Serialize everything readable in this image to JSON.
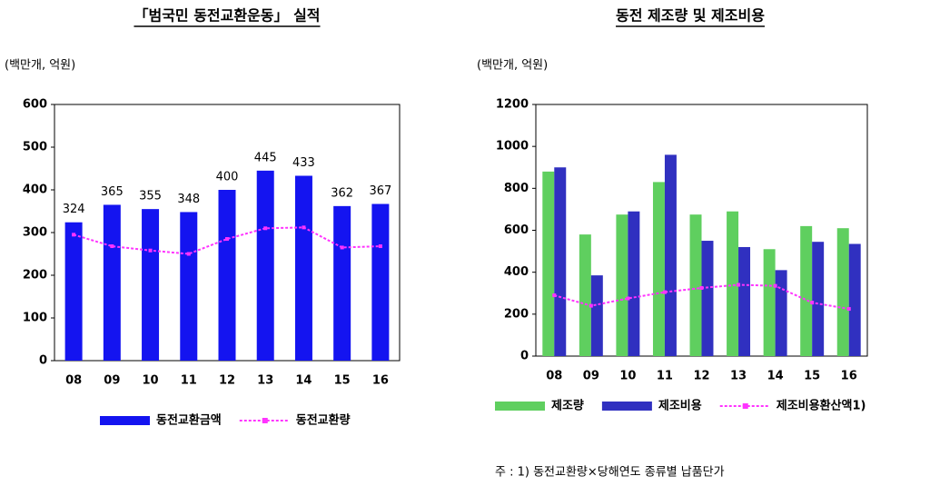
{
  "charts": [
    {
      "chart_data": {
        "type": "bar",
        "title": "「범국민 동전교환운동」 실적",
        "unit_label": "(백만개, 억원)",
        "categories": [
          "08",
          "09",
          "10",
          "11",
          "12",
          "13",
          "14",
          "15",
          "16"
        ],
        "series": [
          {
            "name": "동전교환금액",
            "type": "bar",
            "color": "#1414f0",
            "values": [
              324,
              365,
              355,
              348,
              400,
              445,
              433,
              362,
              367
            ],
            "show_labels": true
          },
          {
            "name": "동전교환량",
            "type": "line",
            "color": "#ff33ff",
            "values": [
              295,
              268,
              258,
              250,
              285,
              310,
              312,
              265,
              268
            ]
          }
        ],
        "ylim": [
          0,
          600
        ],
        "yticks": [
          0,
          100,
          200,
          300,
          400,
          500,
          600
        ],
        "grid": false
      }
    },
    {
      "chart_data": {
        "type": "bar",
        "title": "동전 제조량 및 제조비용",
        "unit_label": "(백만개, 억원)",
        "categories": [
          "08",
          "09",
          "10",
          "11",
          "12",
          "13",
          "14",
          "15",
          "16"
        ],
        "series": [
          {
            "name": "제조량",
            "type": "bar",
            "color": "#5fcf5f",
            "values": [
              880,
              580,
              675,
              830,
              675,
              690,
              510,
              620,
              610
            ]
          },
          {
            "name": "제조비용",
            "type": "bar",
            "color": "#3030c0",
            "values": [
              900,
              385,
              690,
              960,
              550,
              520,
              410,
              545,
              535
            ]
          },
          {
            "name": "제조비용환산액1)",
            "type": "line",
            "color": "#ff33ff",
            "values": [
              290,
              240,
              275,
              305,
              325,
              340,
              335,
              255,
              225
            ]
          }
        ],
        "ylim": [
          0,
          1200
        ],
        "yticks": [
          0,
          200,
          400,
          600,
          800,
          1000,
          1200
        ],
        "grid": false,
        "note": "주 : 1) 동전교환량×당해연도 종류별 납품단가"
      }
    }
  ]
}
